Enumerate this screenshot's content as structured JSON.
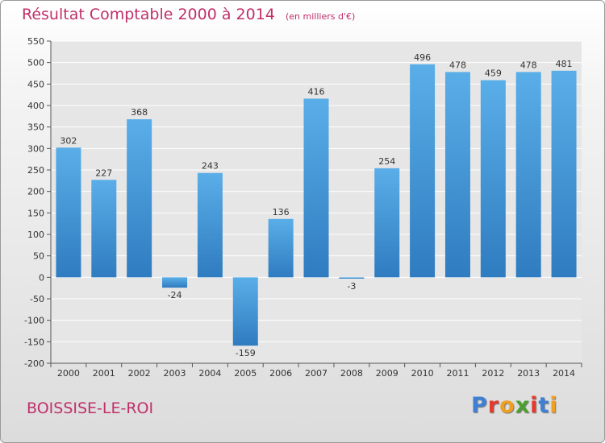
{
  "header": {
    "title": "Résultat Comptable 2000 à 2014",
    "subtitle": "(en milliers d'€)"
  },
  "footer": {
    "commune": "BOISSISE-LE-ROI",
    "brand": "Proxiti",
    "brand_colors": [
      "#3f7fd6",
      "#e63a2e",
      "#f0a020",
      "#4aa02c",
      "#e63a2e",
      "#3f7fd6",
      "#f0a020"
    ]
  },
  "colors": {
    "bar_light": "#5aaee8",
    "bar_dark": "#2f7cc0",
    "title": "#c0306a",
    "grid": "#ffffff",
    "axis_text": "#333333"
  },
  "chart_data": {
    "type": "bar",
    "title": "Résultat Comptable 2000 à 2014",
    "subtitle": "(en milliers d'€)",
    "categories": [
      "2000",
      "2001",
      "2002",
      "2003",
      "2004",
      "2005",
      "2006",
      "2007",
      "2008",
      "2009",
      "2010",
      "2011",
      "2012",
      "2013",
      "2014"
    ],
    "values": [
      302,
      227,
      368,
      -24,
      243,
      -159,
      136,
      416,
      -3,
      254,
      496,
      478,
      459,
      478,
      481
    ],
    "value_labels": [
      "302",
      "227",
      "368",
      "-24",
      "243",
      "-159",
      "136",
      "416",
      "-3",
      "254",
      "496",
      "478",
      "459",
      "478",
      "481"
    ],
    "yticks": [
      550,
      500,
      450,
      400,
      350,
      300,
      250,
      200,
      150,
      100,
      50,
      0,
      -50,
      -100,
      -150,
      -200
    ],
    "ytick_labels": [
      "550",
      "500",
      "450",
      "400",
      "350",
      "300",
      "250",
      "200",
      "150",
      "100",
      "50",
      "0",
      "-50",
      "-100",
      "-150",
      "-200"
    ],
    "ylim": [
      -200,
      550
    ],
    "grid": true,
    "legend": "none"
  }
}
